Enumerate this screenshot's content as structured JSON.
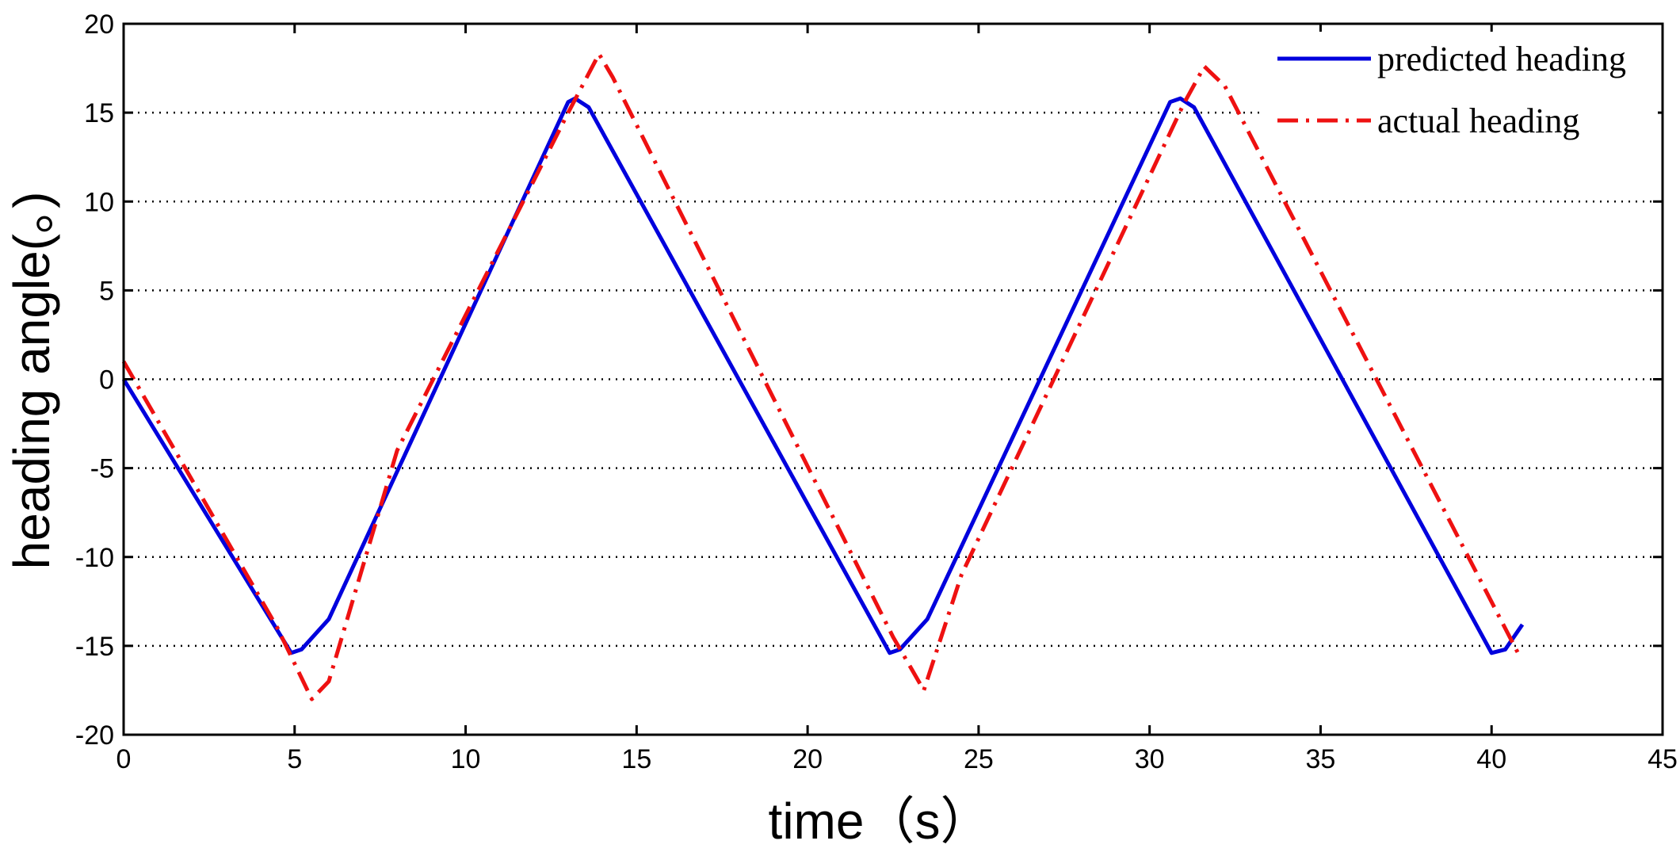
{
  "chart_data": {
    "type": "line",
    "title": "",
    "xlabel": "time（s）",
    "ylabel": "heading angle(。)",
    "xlim": [
      0,
      45
    ],
    "ylim": [
      -20,
      20
    ],
    "xticks": [
      0,
      5,
      10,
      15,
      20,
      25,
      30,
      35,
      40,
      45
    ],
    "yticks": [
      -20,
      -15,
      -10,
      -5,
      0,
      5,
      10,
      15,
      20
    ],
    "grid": "horizontal-dotted",
    "legend_position": "top-right",
    "series": [
      {
        "name": "predicted heading",
        "color": "#0000dd",
        "style": "solid",
        "x": [
          0,
          4.9,
          5.2,
          6.0,
          13.0,
          13.2,
          13.6,
          22.4,
          22.7,
          23.5,
          30.6,
          30.9,
          31.3,
          40.0,
          40.4,
          40.9
        ],
        "y": [
          0,
          -15.4,
          -15.2,
          -13.5,
          15.6,
          15.8,
          15.3,
          -15.4,
          -15.2,
          -13.5,
          15.6,
          15.8,
          15.3,
          -15.4,
          -15.2,
          -13.8
        ]
      },
      {
        "name": "actual heading",
        "color": "#ee1111",
        "style": "dashdot",
        "x": [
          0,
          4.5,
          5.5,
          6.0,
          8.0,
          13.0,
          13.9,
          14.3,
          22.5,
          23.4,
          24.5,
          31.0,
          31.6,
          32.2,
          40.8
        ],
        "y": [
          1.0,
          -14.0,
          -18.0,
          -17.0,
          -4.0,
          15.0,
          18.3,
          17.0,
          -14.5,
          -17.5,
          -11.0,
          15.5,
          17.6,
          16.5,
          -15.5
        ]
      }
    ]
  }
}
